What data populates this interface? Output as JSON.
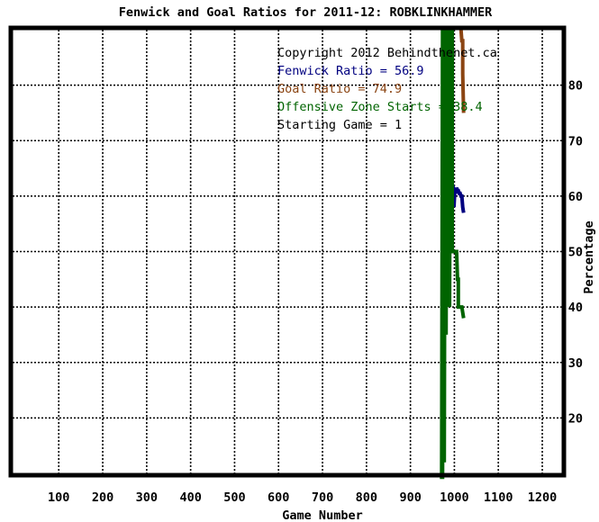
{
  "chart_data": {
    "type": "line",
    "title": "Fenwick and Goal Ratios for 2011-12: ROBKLINKHAMMER",
    "xlabel": "Game Number",
    "ylabel": "Percentage",
    "xlim": [
      -5,
      1245
    ],
    "ylim": [
      10,
      90
    ],
    "x_ticks": [
      100,
      200,
      300,
      400,
      500,
      600,
      700,
      800,
      900,
      1000,
      1100,
      1200
    ],
    "x_tick_labels": [
      "100",
      "200",
      "300",
      "400",
      "500",
      "600",
      "700",
      "800",
      "900",
      "1000",
      "1100",
      "1200"
    ],
    "y_ticks": [
      20,
      30,
      40,
      50,
      60,
      70,
      80
    ],
    "y_tick_labels": [
      "20",
      "30",
      "40",
      "50",
      "60",
      "70",
      "80"
    ],
    "grid": true,
    "legend": [
      {
        "text": "Copyright 2012 Behindthenet.ca",
        "color": "#000000"
      },
      {
        "text": "Fenwick Ratio = 56.9",
        "color": "#000080"
      },
      {
        "text": "Goal Ratio = 74.9",
        "color": "#8b4513"
      },
      {
        "text": "Offensive Zone Starts = 38.4",
        "color": "#006400"
      },
      {
        "text": "Starting Game = 1",
        "color": "#000000"
      }
    ],
    "series": [
      {
        "color": "#000080",
        "x": [
          997,
          999,
          1001,
          1003,
          1005,
          1007,
          1009,
          1011,
          1013,
          1015,
          1017,
          1019,
          1021
        ],
        "y": [
          62.0,
          58.0,
          61.0,
          60.5,
          61.5,
          61.0,
          61.0,
          60.5,
          60.5,
          60.0,
          60.0,
          58.0,
          57.0
        ]
      },
      {
        "color": "#8b4513",
        "x": [
          1015,
          1017,
          1019,
          1019,
          1021
        ],
        "y": [
          90,
          88,
          88,
          82,
          75
        ]
      },
      {
        "color": "#006400",
        "x": [
          971,
          973,
          973,
          975,
          977,
          979,
          981,
          983,
          985,
          987,
          989,
          991,
          993,
          995,
          995,
          997,
          999,
          1001,
          1003,
          1005,
          1007,
          1009,
          1009,
          1011,
          1013,
          1015,
          1017,
          1019,
          1021
        ],
        "y": [
          9,
          90,
          9,
          90,
          12,
          90,
          35,
          90,
          65,
          90,
          40,
          90,
          60,
          90,
          50,
          50,
          50,
          50,
          50,
          50,
          45,
          45,
          40,
          40,
          40,
          40,
          40,
          39,
          38
        ]
      }
    ]
  }
}
